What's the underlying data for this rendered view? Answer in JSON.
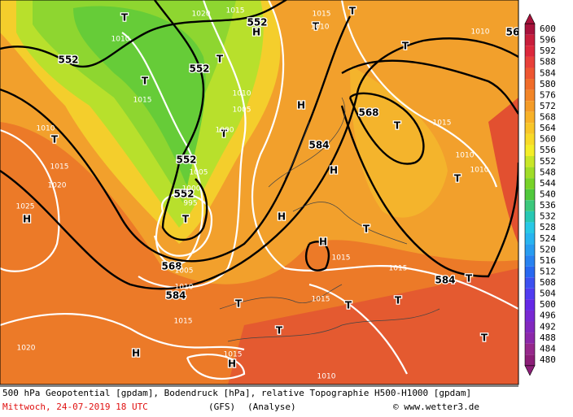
{
  "map": {
    "labels": [
      "552",
      "552",
      "552",
      "552",
      "552",
      "568",
      "568",
      "584",
      "584",
      "584",
      "56",
      "H",
      "H",
      "H",
      "H",
      "H",
      "H",
      "H",
      "H",
      "T",
      "T",
      "T",
      "T",
      "T",
      "T",
      "T",
      "T",
      "T",
      "T",
      "T",
      "T",
      "T",
      "T",
      "T",
      "T",
      "T",
      "T",
      "1020",
      "1015",
      "1010",
      "1015",
      "1010",
      "1005",
      "1000",
      "1005",
      "1000",
      "995",
      "1010",
      "1015",
      "1020",
      "1025",
      "1015",
      "1010",
      "1010",
      "1015",
      "1015",
      "1015",
      "1015",
      "1010",
      "1005",
      "1020",
      "1015",
      "1010",
      "1015",
      "1010",
      "1010"
    ]
  },
  "legend": {
    "labels": [
      600,
      596,
      592,
      588,
      584,
      580,
      576,
      572,
      568,
      564,
      560,
      556,
      552,
      548,
      544,
      540,
      536,
      532,
      528,
      524,
      520,
      516,
      512,
      508,
      504,
      500,
      496,
      492,
      488,
      484,
      480
    ],
    "colors": [
      "#a8123c",
      "#c81e3c",
      "#dc283c",
      "#e8403a",
      "#ee5632",
      "#f06c2a",
      "#f28628",
      "#f49c28",
      "#f8b228",
      "#f8c628",
      "#f8da28",
      "#f4ee28",
      "#c8e628",
      "#a0dc28",
      "#78d228",
      "#50c83c",
      "#3cc87c",
      "#28c8b4",
      "#28c8e6",
      "#28b4f0",
      "#289cf0",
      "#2882f0",
      "#2868f0",
      "#3c50f0",
      "#503cf0",
      "#6428e6",
      "#7828d2",
      "#8228be",
      "#8c28aa",
      "#96288c",
      "#8c1e78"
    ]
  },
  "footer": {
    "caption": "500 hPa Geopotential [gpdam], Bodendruck [hPa], relative Topographie H500-H1000 [gpdam]",
    "date": "Mittwoch, 24-07-2019  18 UTC",
    "model": "(GFS)",
    "run": "(Analyse)",
    "credit": "© www.wetter3.de"
  }
}
